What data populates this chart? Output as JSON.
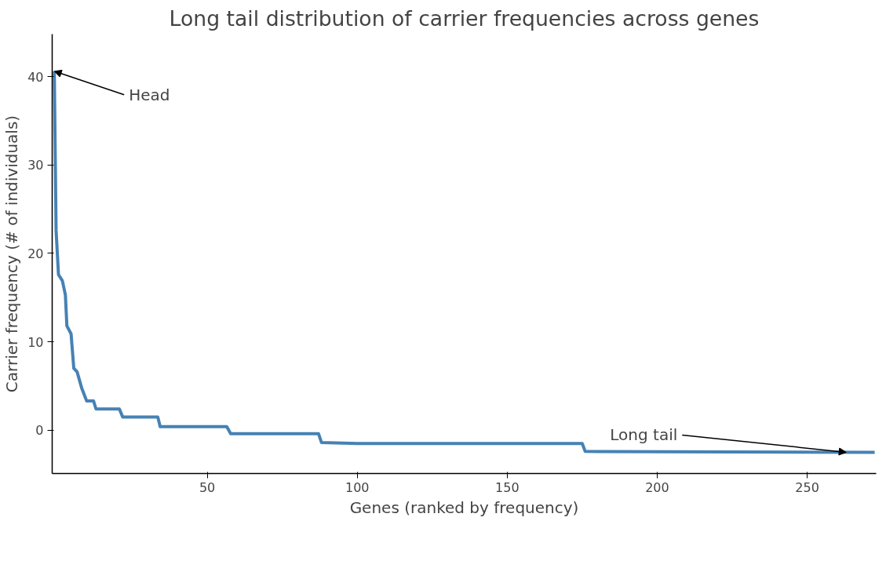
{
  "chart_data": {
    "type": "line",
    "title": "Long tail distribution of carrier frequencies across genes",
    "xlabel": "Genes (ranked by frequency)",
    "ylabel": "Carrier frequency (# of individuals)",
    "x": [
      -1.0,
      -0.4,
      0.4,
      1.7,
      2.7,
      3.2,
      4.6,
      5.5,
      6.6,
      8.2,
      9.8,
      12.1,
      12.9,
      20.7,
      21.8,
      33.5,
      34.3,
      56.5,
      57.8,
      87.1,
      88.1,
      100,
      175,
      176,
      272.5
    ],
    "series": [
      {
        "color": "#4682b4",
        "values": [
          40.6,
          22.6,
          17.6,
          16.9,
          15.3,
          11.8,
          10.9,
          7.0,
          6.6,
          4.7,
          3.3,
          3.3,
          2.4,
          2.4,
          1.5,
          1.5,
          0.4,
          0.4,
          -0.4,
          -0.4,
          -1.4,
          -1.5,
          -1.5,
          -2.4,
          -2.5
        ]
      }
    ],
    "xlim": [
      -1.7,
      273
    ],
    "ylim": [
      -4.9,
      44.8
    ],
    "xticks": [
      50,
      100,
      150,
      200,
      250
    ],
    "yticks": [
      0,
      10,
      20,
      30,
      40
    ],
    "grid": false,
    "marker": "none",
    "line_style": "solid",
    "annotations": [
      {
        "text": "Head",
        "x": -1.0,
        "y": 40.6
      },
      {
        "text": "Long tail",
        "x": 263,
        "y": -2.5
      }
    ]
  }
}
